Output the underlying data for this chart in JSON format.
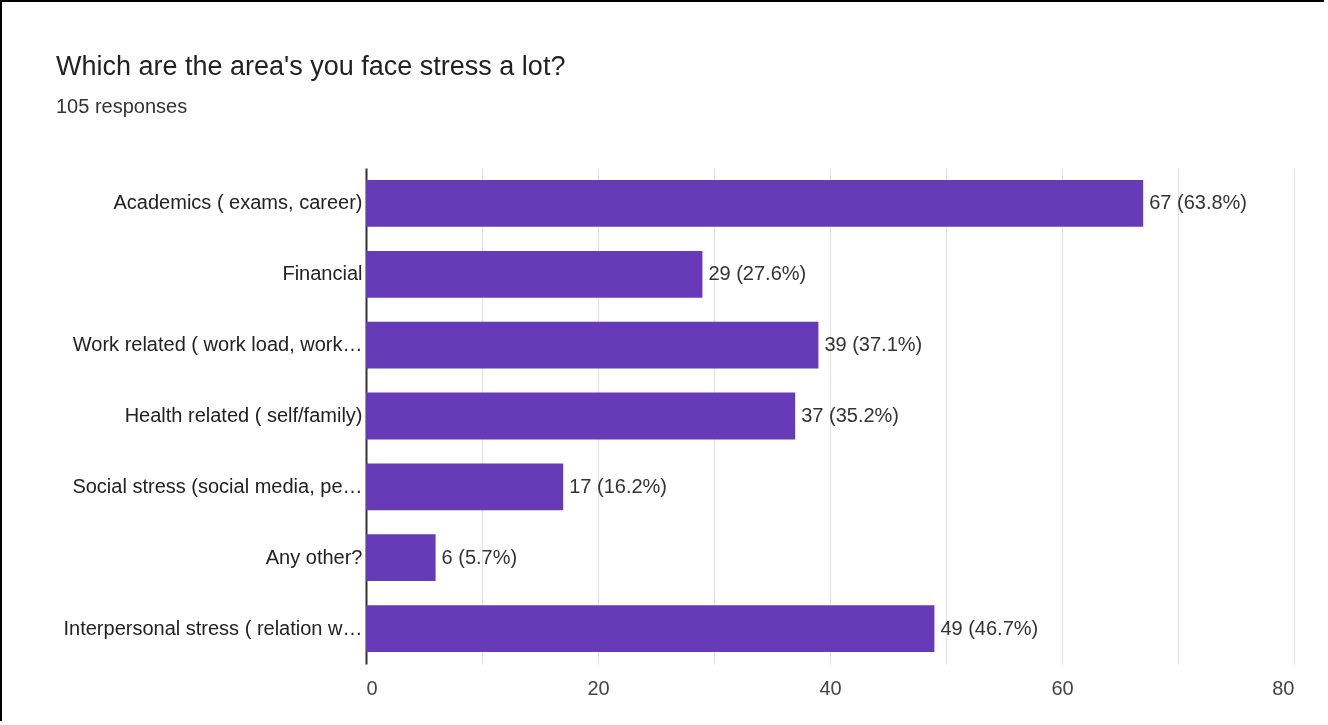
{
  "chart_data": {
    "type": "bar",
    "orientation": "horizontal",
    "title": "Which are the area's you face stress a lot?",
    "subtitle": "105 responses",
    "categories": [
      "Academics ( exams, career)",
      "Financial",
      "Work related ( work load, work…",
      "Health related ( self/family)",
      "Social stress (social media, pe…",
      "Any other?",
      "Interpersonal stress ( relation w…"
    ],
    "values": [
      67,
      29,
      39,
      37,
      17,
      6,
      49
    ],
    "value_labels": [
      "67 (63.8%)",
      "29 (27.6%)",
      "39 (37.1%)",
      "37 (35.2%)",
      "17 (16.2%)",
      "6 (5.7%)",
      "49 (46.7%)"
    ],
    "color": "#673ab7",
    "xlim": [
      0,
      80
    ],
    "xticks": [
      0,
      {
        "value": 10,
        "label": null
      },
      20,
      {
        "value": 30,
        "label": null
      },
      40,
      {
        "value": 50,
        "label": null
      },
      60,
      {
        "value": 70,
        "label": null
      },
      80
    ],
    "grid": "x"
  }
}
